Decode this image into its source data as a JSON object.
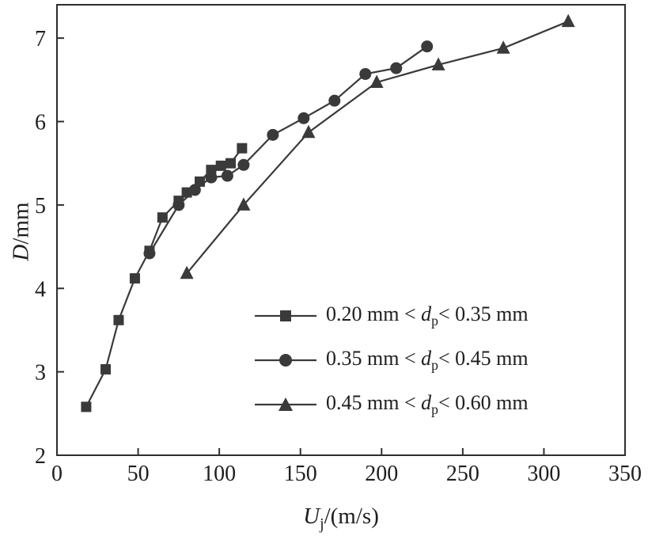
{
  "chart_data": {
    "type": "line",
    "title": "",
    "xlabel": "Uj/(m/s)",
    "ylabel": "D/mm",
    "xlabel_parts": {
      "var": "U",
      "sub": "j",
      "post": "/(m/s)"
    },
    "ylabel_parts": {
      "var": "D",
      "post": "/mm"
    },
    "xlim": [
      0,
      350
    ],
    "ylim": [
      2,
      7.4
    ],
    "xticks": [
      0,
      50,
      100,
      150,
      200,
      250,
      300,
      350
    ],
    "yticks": [
      2,
      3,
      4,
      5,
      6,
      7
    ],
    "grid": false,
    "legend_position": "inside lower right",
    "axis_color": "#2e2e2e",
    "series_color": "#3a3a3a",
    "series": [
      {
        "name": "0.20 mm < dp < 0.35 mm",
        "marker": "square",
        "label": {
          "pre": "0.20 mm < ",
          "var": "d",
          "sub": "p",
          "post": "< 0.35 mm"
        },
        "x": [
          18,
          30,
          38,
          48,
          57,
          65,
          75,
          80,
          88,
          95,
          101,
          107,
          114
        ],
        "y": [
          2.58,
          3.03,
          3.62,
          4.12,
          4.45,
          4.85,
          5.05,
          5.15,
          5.28,
          5.42,
          5.47,
          5.5,
          5.68
        ]
      },
      {
        "name": "0.35 mm < dp < 0.45 mm",
        "marker": "circle",
        "label": {
          "pre": "0.35 mm < ",
          "var": "d",
          "sub": "p",
          "post": "< 0.45 mm"
        },
        "x": [
          57,
          75,
          85,
          95,
          105,
          115,
          133,
          152,
          171,
          190,
          209,
          228
        ],
        "y": [
          4.42,
          5.0,
          5.18,
          5.33,
          5.35,
          5.48,
          5.84,
          6.04,
          6.25,
          6.57,
          6.64,
          6.9
        ]
      },
      {
        "name": "0.45 mm < dp < 0.60 mm",
        "marker": "triangle",
        "label": {
          "pre": "0.45 mm < ",
          "var": "d",
          "sub": "p",
          "post": "< 0.60 mm"
        },
        "x": [
          80,
          115,
          155,
          197,
          235,
          275,
          315
        ],
        "y": [
          4.18,
          5.0,
          5.87,
          6.47,
          6.68,
          6.88,
          7.2
        ]
      }
    ]
  }
}
